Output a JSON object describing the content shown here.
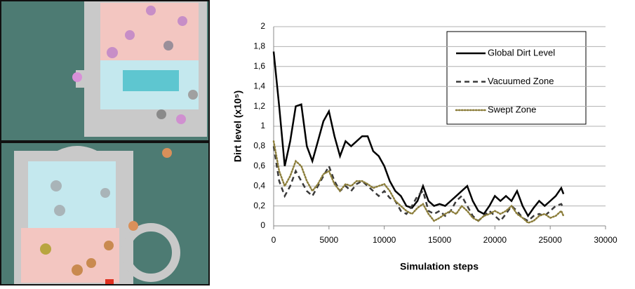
{
  "chart_data": {
    "type": "line",
    "y_label": "Dirt level (x10⁵)",
    "x_label": "Simulation steps",
    "x": [
      0,
      500,
      1000,
      1500,
      2000,
      2500,
      3000,
      3500,
      4000,
      4500,
      5000,
      5500,
      6000,
      6500,
      7000,
      7500,
      8000,
      8500,
      9000,
      9500,
      10000,
      10500,
      11000,
      11500,
      12000,
      12500,
      13000,
      13500,
      14000,
      14500,
      15000,
      15500,
      16000,
      16500,
      17000,
      17500,
      18000,
      18500,
      19000,
      19500,
      20000,
      20500,
      21000,
      21500,
      22000,
      22500,
      23000,
      23500,
      24000,
      24500,
      25000,
      25500,
      26000,
      26200
    ],
    "series": [
      {
        "name": "Global Dirt Level",
        "color": "#000000",
        "style": "solid",
        "values": [
          1.75,
          1.2,
          0.6,
          0.85,
          1.2,
          1.22,
          0.8,
          0.65,
          0.85,
          1.05,
          1.15,
          0.9,
          0.7,
          0.85,
          0.8,
          0.85,
          0.9,
          0.9,
          0.75,
          0.7,
          0.6,
          0.45,
          0.35,
          0.3,
          0.2,
          0.18,
          0.25,
          0.4,
          0.25,
          0.2,
          0.22,
          0.2,
          0.25,
          0.3,
          0.35,
          0.4,
          0.25,
          0.15,
          0.12,
          0.2,
          0.3,
          0.25,
          0.3,
          0.25,
          0.35,
          0.2,
          0.1,
          0.18,
          0.25,
          0.2,
          0.25,
          0.3,
          0.38,
          0.32
        ]
      },
      {
        "name": "Vacuumed Zone",
        "color": "#3a3a3a",
        "style": "dashed",
        "values": [
          0.8,
          0.45,
          0.3,
          0.4,
          0.55,
          0.45,
          0.35,
          0.3,
          0.4,
          0.5,
          0.6,
          0.45,
          0.35,
          0.4,
          0.35,
          0.42,
          0.45,
          0.4,
          0.35,
          0.3,
          0.35,
          0.28,
          0.25,
          0.15,
          0.12,
          0.2,
          0.3,
          0.35,
          0.15,
          0.12,
          0.15,
          0.1,
          0.15,
          0.25,
          0.3,
          0.2,
          0.1,
          0.05,
          0.1,
          0.15,
          0.1,
          0.05,
          0.12,
          0.2,
          0.15,
          0.08,
          0.05,
          0.1,
          0.12,
          0.1,
          0.15,
          0.2,
          0.22,
          0.18
        ]
      },
      {
        "name": "Swept Zone",
        "color": "#8b7d3a",
        "style": "dotted",
        "values": [
          0.85,
          0.55,
          0.4,
          0.5,
          0.65,
          0.6,
          0.45,
          0.35,
          0.42,
          0.52,
          0.55,
          0.42,
          0.35,
          0.42,
          0.4,
          0.45,
          0.45,
          0.42,
          0.38,
          0.4,
          0.42,
          0.35,
          0.25,
          0.2,
          0.15,
          0.12,
          0.18,
          0.22,
          0.12,
          0.05,
          0.08,
          0.12,
          0.15,
          0.12,
          0.2,
          0.15,
          0.08,
          0.05,
          0.1,
          0.12,
          0.15,
          0.12,
          0.15,
          0.2,
          0.12,
          0.08,
          0.03,
          0.05,
          0.1,
          0.12,
          0.08,
          0.1,
          0.15,
          0.1
        ]
      }
    ],
    "xlim": [
      0,
      30000
    ],
    "xticks": [
      0,
      5000,
      10000,
      15000,
      20000,
      25000,
      30000
    ],
    "ylim": [
      0,
      2
    ],
    "yticks": [
      0,
      {
        "value": 0.2,
        "label": "0,2"
      },
      {
        "value": 0.4,
        "label": "0,4"
      },
      {
        "value": 0.6,
        "label": "0,6"
      },
      {
        "value": 0.8,
        "label": "0,8"
      },
      1,
      {
        "value": 1.2,
        "label": "1,2"
      },
      {
        "value": 1.4,
        "label": "1,4"
      },
      {
        "value": 1.6,
        "label": "1,6"
      },
      {
        "value": 1.8,
        "label": "1,8"
      },
      2
    ],
    "grid": true
  }
}
